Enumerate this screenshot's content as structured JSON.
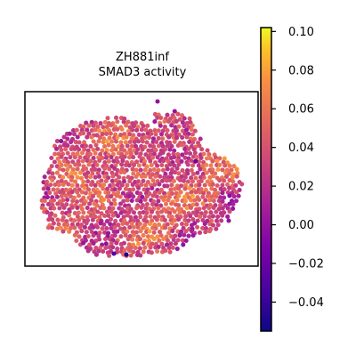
{
  "chart_data": {
    "type": "heatmap",
    "title_lines": [
      "ZH881inf",
      "SMAD3 activity"
    ],
    "xlabel": "",
    "ylabel": "",
    "colormap": "plasma",
    "color_range": [
      -0.055,
      0.102
    ],
    "colorbar_ticks": [
      0.1,
      0.08,
      0.06,
      0.04,
      0.02,
      0.0,
      -0.02,
      -0.04
    ],
    "colorbar_tick_labels": [
      "0.10",
      "0.08",
      "0.06",
      "0.04",
      "0.02",
      "0.00",
      "−0.02",
      "−0.04"
    ],
    "value_distribution": {
      "typical_min": -0.01,
      "typical_max": 0.09,
      "center": 0.035
    },
    "grid": false,
    "legend": "colorbar-right"
  }
}
